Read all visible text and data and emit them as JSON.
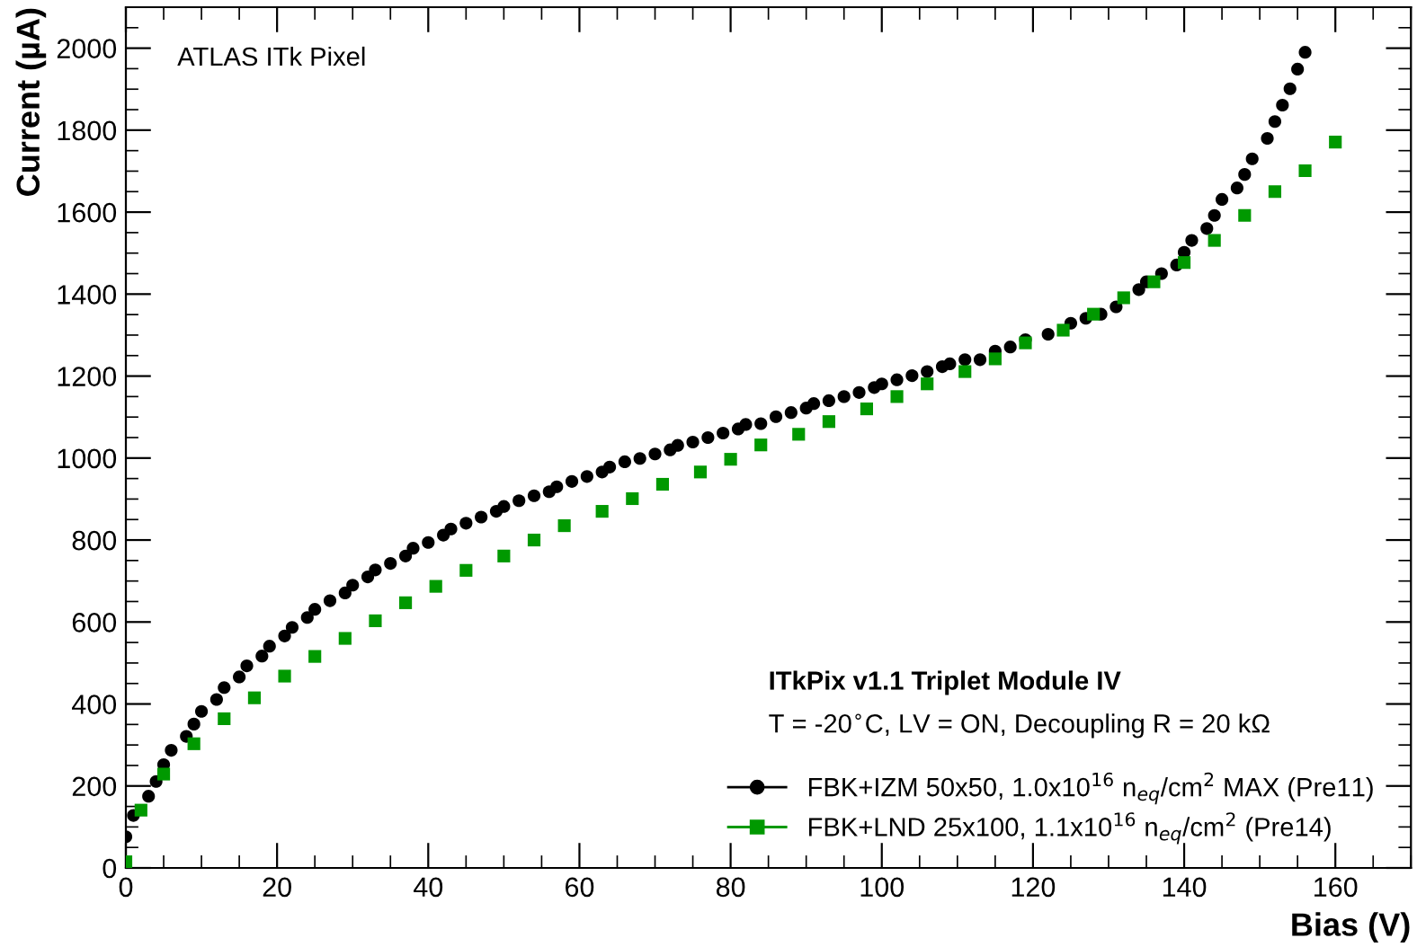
{
  "chart_data": {
    "type": "scatter",
    "xlabel": "Bias (V)",
    "ylabel": "Current (µA)",
    "xlim": [
      0,
      170
    ],
    "ylim": [
      0,
      2100
    ],
    "xticks": [
      0,
      20,
      40,
      60,
      80,
      100,
      120,
      140,
      160
    ],
    "yticks": [
      0,
      200,
      400,
      600,
      800,
      1000,
      1200,
      1400,
      1600,
      1800,
      2000
    ],
    "grid": false,
    "legend": "bottom right",
    "annotations": [
      "ATLAS ITk Pixel",
      "ITkPix v1.1 Triplet Module IV",
      "T = -20$^{∘}$C, LV = ON, Decoupling R = 20 kΩ"
    ],
    "series": [
      {
        "name": "FBK+IZM 50x50, 1.0x10$^{16}$ n$_{eq}$/cm$^{2}$ MAX (Pre11)",
        "color": "#000000",
        "marker": "circle",
        "x": [
          0,
          1,
          3,
          4,
          5,
          6,
          8,
          9,
          10,
          12,
          13,
          15,
          16,
          18,
          19,
          21,
          22,
          24,
          25,
          27,
          29,
          30,
          32,
          33,
          35,
          37,
          38,
          40,
          42,
          43,
          45,
          47,
          49,
          50,
          52,
          54,
          56,
          57,
          59,
          61,
          63,
          64,
          66,
          68,
          70,
          72,
          73,
          75,
          77,
          79,
          81,
          82,
          84,
          86,
          88,
          90,
          91,
          93,
          95,
          97,
          99,
          100,
          102,
          104,
          106,
          108,
          109,
          111,
          113,
          115,
          117,
          119,
          122,
          125,
          127,
          129,
          131,
          134,
          135,
          137,
          139,
          140,
          141,
          143,
          144,
          145,
          147,
          148,
          149,
          151,
          152,
          153,
          154,
          155,
          156
        ],
        "values": [
          76,
          128,
          175,
          211,
          252,
          287,
          321,
          351,
          382,
          411,
          440,
          466,
          493,
          517,
          541,
          566,
          587,
          611,
          631,
          652,
          671,
          690,
          710,
          727,
          743,
          761,
          780,
          794,
          812,
          827,
          841,
          856,
          870,
          882,
          896,
          908,
          918,
          930,
          943,
          955,
          966,
          978,
          991,
          999,
          1010,
          1020,
          1031,
          1039,
          1050,
          1061,
          1071,
          1082,
          1084,
          1101,
          1111,
          1122,
          1133,
          1140,
          1150,
          1160,
          1172,
          1181,
          1191,
          1201,
          1211,
          1223,
          1230,
          1240,
          1240,
          1261,
          1271,
          1289,
          1302,
          1329,
          1341,
          1351,
          1369,
          1411,
          1430,
          1450,
          1471,
          1502,
          1531,
          1560,
          1592,
          1631,
          1659,
          1692,
          1730,
          1780,
          1821,
          1861,
          1901,
          1949,
          1990
        ]
      },
      {
        "name": "FBK+LND 25x100, 1.1x10$^{16}$ n$_{eq}$/cm$^{2}$ (Pre14)",
        "color": "#009900",
        "marker": "square",
        "x": [
          0,
          2,
          5,
          9,
          13,
          17,
          21,
          25,
          29,
          33,
          37,
          41,
          45,
          50,
          54,
          58,
          63,
          67,
          71,
          76,
          80,
          84,
          89,
          93,
          98,
          102,
          106,
          111,
          115,
          119,
          124,
          128,
          132,
          136,
          140,
          144,
          148,
          152,
          156,
          160
        ],
        "values": [
          15,
          141,
          229,
          303,
          364,
          415,
          468,
          516,
          560,
          603,
          647,
          687,
          726,
          761,
          800,
          835,
          870,
          901,
          936,
          966,
          997,
          1032,
          1058,
          1089,
          1120,
          1150,
          1181,
          1211,
          1242,
          1281,
          1312,
          1351,
          1391,
          1430,
          1477,
          1531,
          1592,
          1650,
          1701,
          1771
        ]
      }
    ]
  }
}
